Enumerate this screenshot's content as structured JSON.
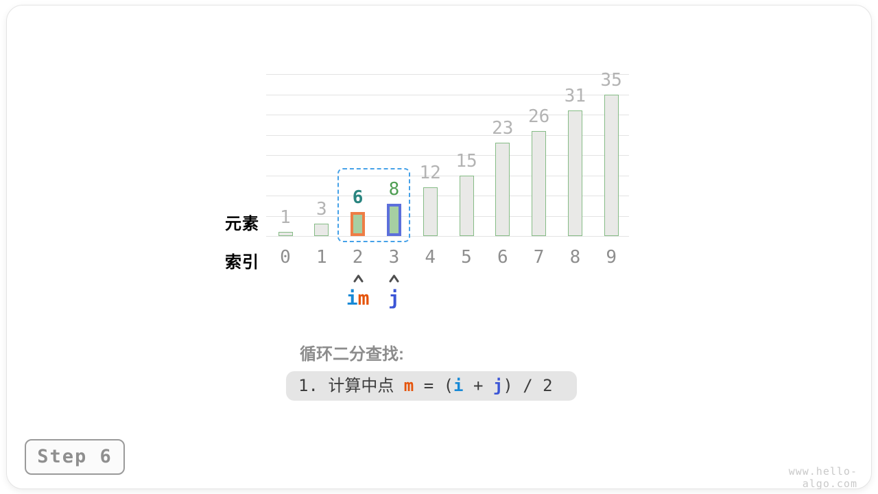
{
  "chart_data": {
    "type": "bar",
    "title": "",
    "categories": [
      "0",
      "1",
      "2",
      "3",
      "4",
      "5",
      "6",
      "7",
      "8",
      "9"
    ],
    "values": [
      1,
      3,
      6,
      8,
      12,
      15,
      23,
      26,
      31,
      35
    ],
    "xlabel": "索引",
    "ylabel": "元素",
    "ylim": [
      0,
      40
    ],
    "gridline_step": 5,
    "grid": true,
    "legend": "none",
    "row_labels": {
      "elements": "元素",
      "indices": "索引"
    },
    "value_labels": [
      "1",
      "3",
      "6",
      "8",
      "12",
      "15",
      "23",
      "26",
      "31",
      "35"
    ],
    "highlights": [
      {
        "index": 2,
        "border_color": "#ee7d45",
        "fill_color": "#a6cfa2",
        "value_color": "#2a8580",
        "value_bold": true
      },
      {
        "index": 3,
        "border_color": "#5c6fdb",
        "fill_color": "#a6cfa2",
        "value_color": "#4f9e53",
        "value_bold": false
      }
    ],
    "selection_range": {
      "from_index": 2,
      "to_index": 3
    }
  },
  "colors": {
    "bar_fill": "#e9e9e7",
    "bar_border": "#85bb85",
    "grid": "#e3e3e3",
    "value_label": "#b3b3b3",
    "index_label": "#8e8e8e",
    "selection_dash": "#45a1e8",
    "pointer_i": "#1789d6",
    "pointer_m": "#e5540b",
    "pointer_j": "#3b55d6",
    "arrow": "#4f4f4f",
    "element_label": "#5a9e5c",
    "index_row_label": "#999999"
  },
  "pointers": [
    {
      "index": 2,
      "parts": [
        {
          "text": "i",
          "color": "#1789d6"
        },
        {
          "text": "m",
          "color": "#e5540b"
        }
      ]
    },
    {
      "index": 3,
      "parts": [
        {
          "text": "j",
          "color": "#3b55d6"
        }
      ]
    }
  ],
  "caption": {
    "text": "循环二分查找:"
  },
  "formula": {
    "segments": [
      {
        "text": "1. 计算中点 ",
        "color": "#3d3d3d",
        "bold": false
      },
      {
        "text": "m",
        "color": "#e5540b",
        "bold": true
      },
      {
        "text": " = (",
        "color": "#3d3d3d",
        "bold": false
      },
      {
        "text": "i",
        "color": "#1789d6",
        "bold": true
      },
      {
        "text": " + ",
        "color": "#3d3d3d",
        "bold": false
      },
      {
        "text": "j",
        "color": "#3b55d6",
        "bold": true
      },
      {
        "text": ") / 2",
        "color": "#3d3d3d",
        "bold": false
      }
    ]
  },
  "footer": {
    "step_label": "Step 6",
    "watermark": "www.hello-algo.com"
  }
}
